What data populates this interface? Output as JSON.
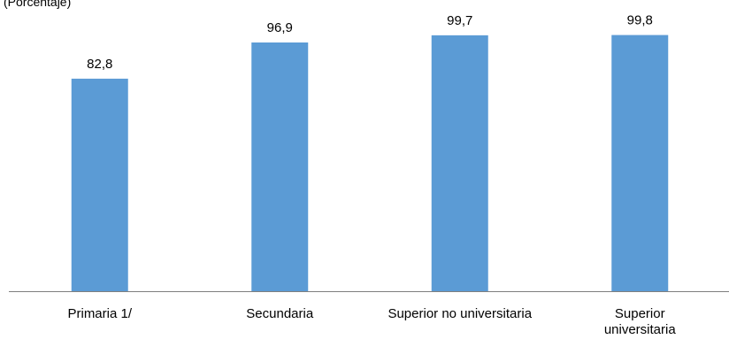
{
  "chart_data": {
    "type": "bar",
    "subtitle": "(Porcentaje)",
    "categories": [
      [
        "Primaria 1/"
      ],
      [
        "Secundaria"
      ],
      [
        "Superior no universitaria"
      ],
      [
        "Superior",
        "universitaria"
      ]
    ],
    "values": [
      82.8,
      96.9,
      99.7,
      99.8
    ],
    "data_labels": [
      "82,8",
      "96,9",
      "99,7",
      "99,8"
    ],
    "ylim": [
      0,
      100
    ],
    "grid": false,
    "legend": "none",
    "colors": {
      "bar": "#5b9bd5",
      "axis": "#7f7f7f",
      "text": "#000000"
    }
  }
}
